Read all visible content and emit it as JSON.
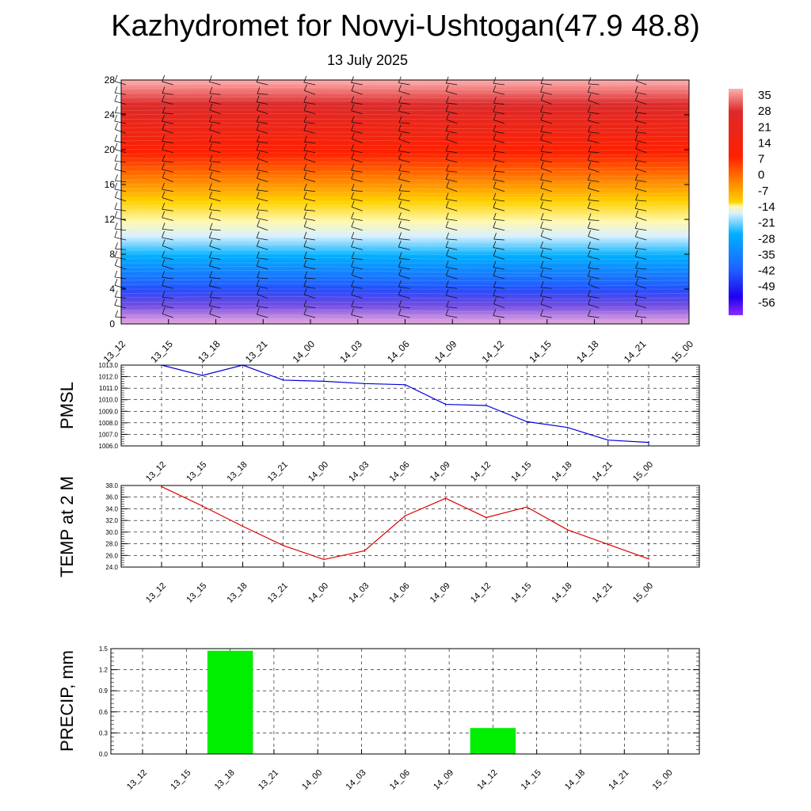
{
  "header": {
    "title": "Kazhydromet for Novyi-Ushtogan(47.9 48.8)",
    "date": "13 July 2025"
  },
  "chart_data": [
    {
      "type": "heatmap",
      "title": "",
      "xlabel": "",
      "ylabel": "",
      "categories": [
        "13_12",
        "13_15",
        "13_18",
        "13_21",
        "14_00",
        "14_03",
        "14_06",
        "14_09",
        "14_12",
        "14_15",
        "14_18",
        "14_21",
        "15_00"
      ],
      "y_ticks": [
        0,
        4,
        8,
        12,
        16,
        20,
        24,
        28
      ],
      "ylim": [
        0,
        28
      ],
      "colorbar_labels": [
        "35",
        "28",
        "21",
        "14",
        "7",
        "0",
        "-7",
        "-14",
        "-21",
        "-28",
        "-35",
        "-42",
        "-49",
        "-56"
      ],
      "colorbar_range": [
        -63,
        42
      ],
      "overlay": "wind barbs",
      "grid": false
    },
    {
      "type": "line",
      "ylabel": "PMSL",
      "categories": [
        "13_12",
        "13_15",
        "13_18",
        "13_21",
        "14_00",
        "14_03",
        "14_06",
        "14_09",
        "14_12",
        "14_15",
        "14_18",
        "14_21",
        "15_00"
      ],
      "series": [
        {
          "color": "#0000dd",
          "values": [
            1013.0,
            1012.1,
            1013.0,
            1011.7,
            1011.6,
            1011.4,
            1011.3,
            1009.6,
            1009.5,
            1008.1,
            1007.6,
            1006.5,
            1006.3
          ]
        }
      ],
      "y_ticks": [
        "1006.0",
        "1007.0",
        "1008.0",
        "1009.0",
        "1010.0",
        "1011.0",
        "1012.0",
        "1013.0"
      ],
      "ylim": [
        1006.0,
        1013.0
      ],
      "grid": true
    },
    {
      "type": "line",
      "ylabel": "TEMP at 2 M",
      "categories": [
        "13_12",
        "13_15",
        "13_18",
        "13_21",
        "14_00",
        "14_03",
        "14_06",
        "14_09",
        "14_12",
        "14_15",
        "14_18",
        "14_21",
        "15_00"
      ],
      "series": [
        {
          "color": "#dd0000",
          "values": [
            37.8,
            34.5,
            31.0,
            27.7,
            25.3,
            26.8,
            32.8,
            35.8,
            32.5,
            34.3,
            30.4,
            27.9,
            25.4
          ]
        }
      ],
      "y_ticks": [
        "24.0",
        "26.0",
        "28.0",
        "30.0",
        "32.0",
        "34.0",
        "36.0",
        "38.0"
      ],
      "ylim": [
        24.0,
        38.0
      ],
      "grid": true
    },
    {
      "type": "bar",
      "ylabel": "PRECIP, mm",
      "categories": [
        "13_12",
        "13_15",
        "13_18",
        "13_21",
        "14_00",
        "14_03",
        "14_06",
        "14_09",
        "14_12",
        "14_15",
        "14_18",
        "14_21",
        "15_00"
      ],
      "values": [
        0,
        0,
        1.47,
        0,
        0,
        0,
        0,
        0,
        0.37,
        0,
        0,
        0,
        0
      ],
      "bar_color": "#00ee00",
      "y_ticks": [
        "0.0",
        "0.3",
        "0.6",
        "0.9",
        "1.2",
        "1.5"
      ],
      "ylim": [
        0,
        1.5
      ],
      "grid": true
    }
  ]
}
